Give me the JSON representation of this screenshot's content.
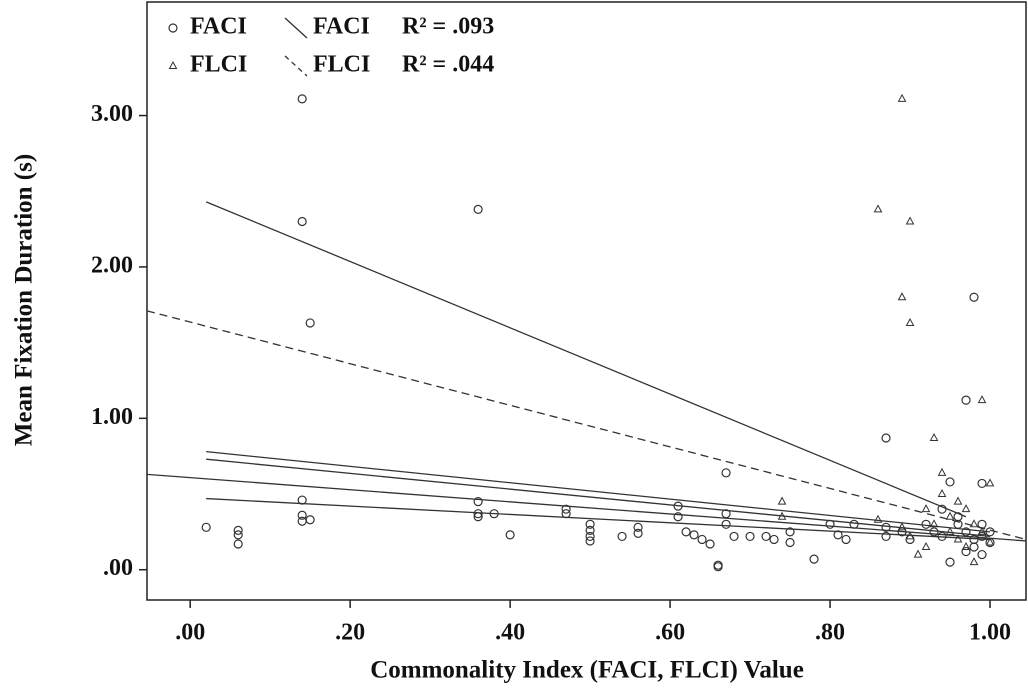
{
  "chart_data": {
    "type": "scatter",
    "xlabel": "Commonality Index (FACI, FLCI) Value",
    "ylabel": "Mean Fixation Duration (s)",
    "xlim": [
      -0.054,
      1.045
    ],
    "ylim": [
      -0.2,
      3.75
    ],
    "xticks": [
      {
        "value": 0,
        "label": ".00"
      },
      {
        "value": 0.2,
        "label": ".20"
      },
      {
        "value": 0.4,
        "label": ".40"
      },
      {
        "value": 0.6,
        "label": ".60"
      },
      {
        "value": 0.8,
        "label": ".80"
      },
      {
        "value": 1,
        "label": "1.00"
      }
    ],
    "yticks": [
      {
        "value": 0,
        "label": ".00"
      },
      {
        "value": 1,
        "label": "1.00"
      },
      {
        "value": 2,
        "label": "2.00"
      },
      {
        "value": 3,
        "label": "3.00"
      }
    ],
    "series": [
      {
        "name": "FACI",
        "marker": "circle",
        "color": "#333333",
        "x": [
          0.02,
          0.06,
          0.06,
          0.06,
          0.14,
          0.14,
          0.15,
          0.14,
          0.14,
          0.14,
          0.15,
          0.36,
          0.36,
          0.36,
          0.36,
          0.38,
          0.4,
          0.47,
          0.47,
          0.5,
          0.5,
          0.5,
          0.5,
          0.54,
          0.56,
          0.56,
          0.61,
          0.61,
          0.62,
          0.63,
          0.64,
          0.65,
          0.66,
          0.66,
          0.67,
          0.67,
          0.67,
          0.68,
          0.7,
          0.72,
          0.73,
          0.75,
          0.75,
          0.78,
          0.8,
          0.81,
          0.82,
          0.83,
          0.87,
          0.87,
          0.87,
          0.89,
          0.9,
          0.92,
          0.93,
          0.94,
          0.94,
          0.95,
          0.95,
          0.96,
          0.97,
          0.97,
          0.98,
          0.98,
          0.98,
          0.99,
          0.99,
          0.99,
          0.99,
          1.0,
          1.0,
          0.96,
          0.97
        ],
        "values": [
          0.28,
          0.26,
          0.23,
          0.17,
          3.11,
          2.3,
          1.63,
          0.46,
          0.36,
          0.32,
          0.33,
          2.38,
          0.45,
          0.37,
          0.35,
          0.37,
          0.23,
          0.4,
          0.37,
          0.3,
          0.26,
          0.22,
          0.19,
          0.22,
          0.28,
          0.24,
          0.42,
          0.35,
          0.25,
          0.23,
          0.2,
          0.17,
          0.03,
          0.02,
          0.64,
          0.37,
          0.3,
          0.22,
          0.22,
          0.22,
          0.2,
          0.25,
          0.18,
          0.07,
          0.3,
          0.23,
          0.2,
          0.3,
          0.87,
          0.28,
          0.22,
          0.25,
          0.2,
          0.3,
          0.25,
          0.4,
          0.22,
          0.05,
          0.58,
          0.3,
          1.12,
          0.25,
          1.8,
          0.2,
          0.15,
          0.57,
          0.3,
          0.22,
          0.1,
          0.25,
          0.18,
          0.35,
          0.12
        ]
      },
      {
        "name": "FLCI",
        "marker": "triangle",
        "color": "#333333",
        "x": [
          0.86,
          0.89,
          0.9,
          0.89,
          0.9,
          0.99,
          0.93,
          0.74,
          0.74,
          0.86,
          0.89,
          0.9,
          0.91,
          0.92,
          0.93,
          0.94,
          0.94,
          0.95,
          0.95,
          0.96,
          0.97,
          0.97,
          0.98,
          0.98,
          0.99,
          1.0,
          1.0,
          0.92,
          0.96
        ],
        "values": [
          2.38,
          3.11,
          2.3,
          1.8,
          1.63,
          1.12,
          0.87,
          0.45,
          0.35,
          0.33,
          0.28,
          0.22,
          0.1,
          0.4,
          0.3,
          0.64,
          0.5,
          0.35,
          0.25,
          0.2,
          0.15,
          0.4,
          0.3,
          0.05,
          0.25,
          0.57,
          0.18,
          0.15,
          0.45
        ]
      }
    ],
    "fits": [
      {
        "name": "FACI",
        "label": "R² = .093",
        "dash": false,
        "x": [
          0.02,
          0.97
        ],
        "values": [
          2.43,
          0.35
        ]
      },
      {
        "name": "FLCI",
        "label": "R² = .044",
        "dash": true,
        "x": [
          -0.054,
          1.045
        ],
        "values": [
          1.71,
          0.2
        ]
      }
    ],
    "lines": [
      {
        "x": [
          0.02,
          1.0
        ],
        "values": [
          0.78,
          0.25
        ]
      },
      {
        "x": [
          0.02,
          1.0
        ],
        "values": [
          0.73,
          0.22
        ]
      },
      {
        "x": [
          -0.054,
          1.045
        ],
        "values": [
          0.63,
          0.19
        ]
      },
      {
        "x": [
          0.02,
          1.0
        ],
        "values": [
          0.47,
          0.2
        ]
      }
    ]
  }
}
